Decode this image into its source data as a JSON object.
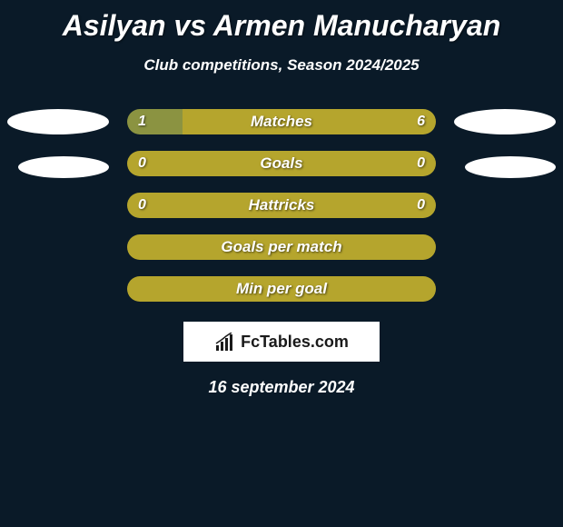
{
  "title": "Asilyan vs Armen Manucharyan",
  "subtitle": "Club competitions, Season 2024/2025",
  "colors": {
    "background": "#0a1a28",
    "bar_left": "#8b9341",
    "bar_right": "#b5a52d",
    "bar_full": "#b5a52d",
    "text": "#ffffff",
    "avatar": "#ffffff",
    "logo_bg": "#ffffff",
    "logo_text": "#1a1a1a"
  },
  "avatars": {
    "left_width": 112,
    "left_height": 28,
    "avatar2_width": 100,
    "avatar2_height": 24
  },
  "stats": [
    {
      "label": "Matches",
      "left_value": "1",
      "right_value": "6",
      "left_pct": 18,
      "left_color": "#8b9341",
      "right_color": "#b5a52d",
      "show_values": true
    },
    {
      "label": "Goals",
      "left_value": "0",
      "right_value": "0",
      "left_pct": 0,
      "left_color": "#8b9341",
      "right_color": "#b5a52d",
      "show_values": true
    },
    {
      "label": "Hattricks",
      "left_value": "0",
      "right_value": "0",
      "left_pct": 0,
      "left_color": "#8b9341",
      "right_color": "#b5a52d",
      "show_values": true
    },
    {
      "label": "Goals per match",
      "left_value": "",
      "right_value": "",
      "left_pct": 0,
      "left_color": "#8b9341",
      "right_color": "#b5a52d",
      "show_values": false
    },
    {
      "label": "Min per goal",
      "left_value": "",
      "right_value": "",
      "left_pct": 0,
      "left_color": "#8b9341",
      "right_color": "#b5a52d",
      "show_values": false
    }
  ],
  "logo": {
    "text": "FcTables.com"
  },
  "date": "16 september 2024",
  "typography": {
    "title_fontsize": 32,
    "subtitle_fontsize": 17,
    "bar_label_fontsize": 17,
    "bar_value_fontsize": 16,
    "date_fontsize": 18
  }
}
